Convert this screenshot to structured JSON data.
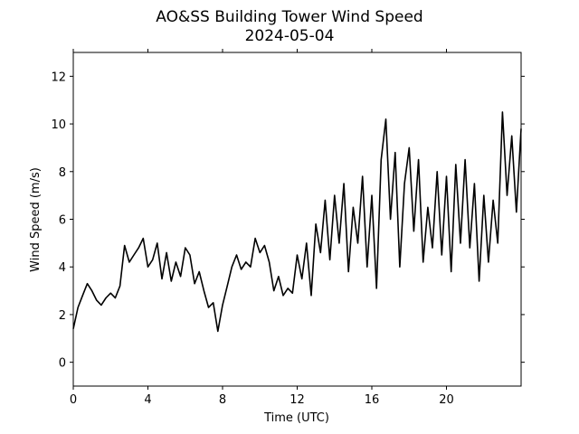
{
  "chart_data": {
    "type": "line",
    "title": "AO&SS Building Tower Wind Speed",
    "subtitle": "2024-05-04",
    "x_label": "Time (UTC)",
    "y_label": "Wind Speed (m/s)",
    "xlim": [
      0,
      24
    ],
    "xticks": [
      0,
      4,
      8,
      12,
      16,
      20
    ],
    "ylim": [
      -1,
      13
    ],
    "yticks": [
      0,
      2,
      4,
      6,
      8,
      10,
      12
    ],
    "x": [
      0,
      0.25,
      0.5,
      0.75,
      1,
      1.25,
      1.5,
      1.75,
      2,
      2.25,
      2.5,
      2.75,
      3,
      3.25,
      3.5,
      3.75,
      4,
      4.25,
      4.5,
      4.75,
      5,
      5.25,
      5.5,
      5.75,
      6,
      6.25,
      6.5,
      6.75,
      7,
      7.25,
      7.5,
      7.75,
      8,
      8.25,
      8.5,
      8.75,
      9,
      9.25,
      9.5,
      9.75,
      10,
      10.25,
      10.5,
      10.75,
      11,
      11.25,
      11.5,
      11.75,
      12,
      12.25,
      12.5,
      12.75,
      13,
      13.25,
      13.5,
      13.75,
      14,
      14.25,
      14.5,
      14.75,
      15,
      15.25,
      15.5,
      15.75,
      16,
      16.25,
      16.5,
      16.75,
      17,
      17.25,
      17.5,
      17.75,
      18,
      18.25,
      18.5,
      18.75,
      19,
      19.25,
      19.5,
      19.75,
      20,
      20.25,
      20.5,
      20.75,
      21,
      21.25,
      21.5,
      21.75,
      22,
      22.25,
      22.5,
      22.75,
      23,
      23.25,
      23.5,
      23.75,
      24
    ],
    "series": [
      {
        "name": "Wind Speed",
        "color": "#000000",
        "values": [
          1.4,
          2.3,
          2.8,
          3.3,
          3.0,
          2.6,
          2.4,
          2.7,
          2.9,
          2.7,
          3.2,
          4.9,
          4.2,
          4.5,
          4.8,
          5.2,
          4.0,
          4.3,
          5.0,
          3.5,
          4.6,
          3.4,
          4.2,
          3.6,
          4.8,
          4.5,
          3.3,
          3.8,
          3.0,
          2.3,
          2.5,
          1.3,
          2.4,
          3.2,
          4.0,
          4.5,
          3.9,
          4.2,
          4.0,
          5.2,
          4.6,
          4.9,
          4.2,
          3.0,
          3.6,
          2.8,
          3.1,
          2.9,
          4.5,
          3.5,
          5.0,
          2.8,
          5.8,
          4.6,
          6.8,
          4.3,
          7.0,
          5.0,
          7.5,
          3.8,
          6.5,
          5.0,
          7.8,
          4.0,
          7.0,
          3.1,
          8.5,
          10.2,
          6.0,
          8.8,
          4.0,
          7.5,
          9.0,
          5.5,
          8.5,
          4.2,
          6.5,
          4.8,
          8.0,
          4.5,
          7.8,
          3.8,
          8.3,
          5.0,
          8.5,
          4.8,
          7.5,
          3.4,
          7.0,
          4.2,
          6.8,
          5.0,
          10.5,
          7.0,
          9.5,
          6.3,
          9.8
        ]
      }
    ]
  }
}
